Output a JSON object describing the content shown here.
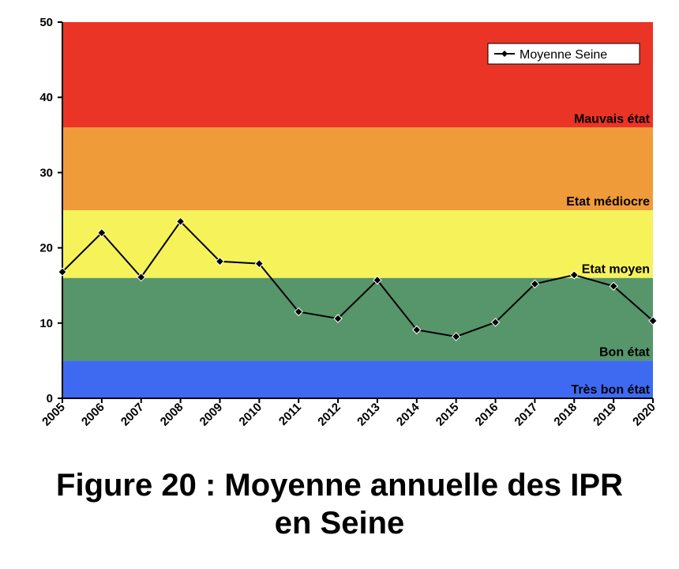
{
  "chart_data": {
    "type": "line",
    "x": [
      "2005",
      "2006",
      "2007",
      "2008",
      "2009",
      "2010",
      "2011",
      "2012",
      "2013",
      "2014",
      "2015",
      "2016",
      "2017",
      "2018",
      "2019",
      "2020"
    ],
    "series": [
      {
        "name": "Moyenne Seine",
        "values": [
          16.8,
          22.0,
          16.1,
          23.5,
          18.2,
          17.9,
          11.5,
          10.6,
          15.7,
          9.1,
          8.2,
          10.1,
          15.2,
          16.4,
          14.9,
          10.3
        ],
        "color": "#000000"
      }
    ],
    "ylim": [
      0,
      50
    ],
    "yticks": [
      "0",
      "10",
      "20",
      "30",
      "40",
      "50"
    ],
    "bands": [
      {
        "label": "Très bon état",
        "from": 0,
        "to": 5,
        "color": "#3e6af2"
      },
      {
        "label": "Bon état",
        "from": 5,
        "to": 16,
        "color": "#56966a"
      },
      {
        "label": "Etat moyen",
        "from": 16,
        "to": 25,
        "color": "#f6f25a"
      },
      {
        "label": "Etat médiocre",
        "from": 25,
        "to": 36,
        "color": "#f09b3a"
      },
      {
        "label": "Mauvais état",
        "from": 36,
        "to": 50,
        "color": "#ea3425"
      }
    ],
    "legend_position": "top-right",
    "grid": false
  },
  "caption": {
    "line1": "Figure 20 : Moyenne annuelle des IPR",
    "line2": "en Seine"
  }
}
